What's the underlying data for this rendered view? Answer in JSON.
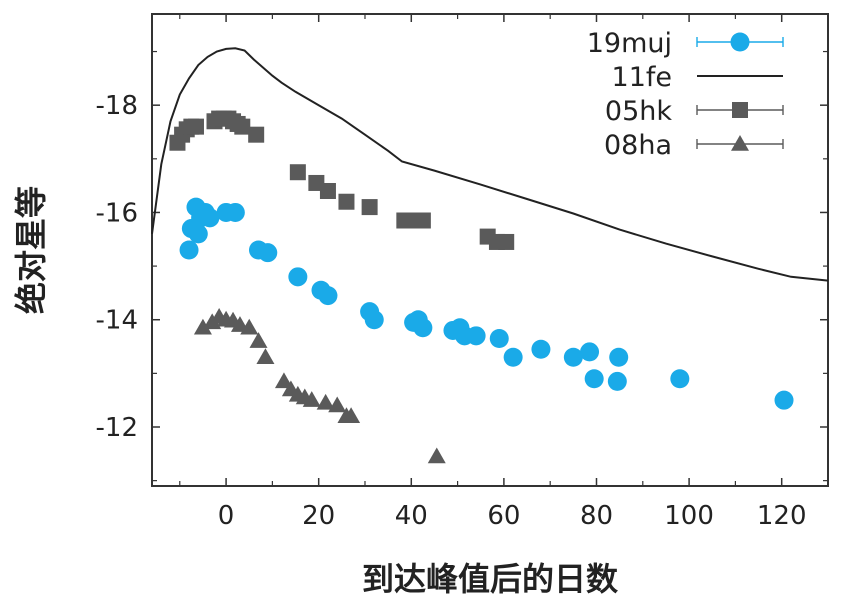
{
  "chart_data": {
    "type": "scatter",
    "xlabel": "到达峰值后的日数",
    "ylabel": "绝对星等",
    "xlim": [
      -16,
      130
    ],
    "ylim": [
      -10.9,
      -19.7
    ],
    "y_inverted": true,
    "xticks": [
      0,
      20,
      40,
      60,
      80,
      100,
      120
    ],
    "yticks": [
      -12,
      -14,
      -16,
      -18
    ],
    "x_tick_labels": [
      "0",
      "20",
      "40",
      "60",
      "80",
      "100",
      "120"
    ],
    "y_tick_labels": [
      "-12",
      "-14",
      "-16",
      "-18"
    ],
    "grid": false,
    "legend_position": "top-right",
    "series": [
      {
        "name": "19muj",
        "marker": "circle",
        "color": "#1aaae8",
        "points": [
          [
            -8,
            -15.3
          ],
          [
            -7.5,
            -15.7
          ],
          [
            -6.5,
            -16.1
          ],
          [
            -6,
            -15.6
          ],
          [
            -5.5,
            -15.9
          ],
          [
            -4.5,
            -16.0
          ],
          [
            -3.5,
            -15.9
          ],
          [
            0,
            -16.0
          ],
          [
            2,
            -16.0
          ],
          [
            7,
            -15.3
          ],
          [
            9,
            -15.25
          ],
          [
            15.5,
            -14.8
          ],
          [
            20.5,
            -14.55
          ],
          [
            22,
            -14.45
          ],
          [
            31,
            -14.15
          ],
          [
            32,
            -14.0
          ],
          [
            40.5,
            -13.95
          ],
          [
            41.5,
            -14.0
          ],
          [
            42.5,
            -13.85
          ],
          [
            49,
            -13.8
          ],
          [
            50.5,
            -13.85
          ],
          [
            51.5,
            -13.7
          ],
          [
            54,
            -13.7
          ],
          [
            59,
            -13.65
          ],
          [
            62,
            -13.3
          ],
          [
            68,
            -13.45
          ],
          [
            75,
            -13.3
          ],
          [
            78.5,
            -13.4
          ],
          [
            79.5,
            -12.9
          ],
          [
            84.5,
            -12.85
          ],
          [
            84.8,
            -13.3
          ],
          [
            98,
            -12.9
          ],
          [
            120.5,
            -12.5
          ]
        ]
      },
      {
        "name": "11fe",
        "marker": "line",
        "color": "#222222",
        "points": [
          [
            -16,
            -15.6
          ],
          [
            -14,
            -16.9
          ],
          [
            -12,
            -17.7
          ],
          [
            -10,
            -18.2
          ],
          [
            -8,
            -18.5
          ],
          [
            -6,
            -18.75
          ],
          [
            -4,
            -18.9
          ],
          [
            -2,
            -19.0
          ],
          [
            0,
            -19.05
          ],
          [
            2,
            -19.06
          ],
          [
            4,
            -19.02
          ],
          [
            6,
            -18.85
          ],
          [
            8,
            -18.7
          ],
          [
            10,
            -18.55
          ],
          [
            12,
            -18.42
          ],
          [
            15,
            -18.25
          ],
          [
            20,
            -18.0
          ],
          [
            25,
            -17.75
          ],
          [
            30,
            -17.45
          ],
          [
            35,
            -17.15
          ],
          [
            38,
            -16.95
          ],
          [
            45,
            -16.78
          ],
          [
            55,
            -16.52
          ],
          [
            65,
            -16.25
          ],
          [
            75,
            -15.98
          ],
          [
            85,
            -15.68
          ],
          [
            95,
            -15.42
          ],
          [
            105,
            -15.18
          ],
          [
            115,
            -14.95
          ],
          [
            122,
            -14.8
          ],
          [
            130,
            -14.73
          ]
        ]
      },
      {
        "name": "05hk",
        "marker": "square",
        "color": "#5a5a5a",
        "points": [
          [
            -10.5,
            -17.3
          ],
          [
            -9.5,
            -17.45
          ],
          [
            -8.5,
            -17.55
          ],
          [
            -7.5,
            -17.6
          ],
          [
            -6.5,
            -17.6
          ],
          [
            -2.5,
            -17.7
          ],
          [
            -1.5,
            -17.75
          ],
          [
            -0.5,
            -17.75
          ],
          [
            0.5,
            -17.75
          ],
          [
            1.5,
            -17.7
          ],
          [
            2.5,
            -17.65
          ],
          [
            3.5,
            -17.6
          ],
          [
            6.5,
            -17.45
          ],
          [
            15.5,
            -16.75
          ],
          [
            19.5,
            -16.55
          ],
          [
            22,
            -16.4
          ],
          [
            26,
            -16.2
          ],
          [
            31,
            -16.1
          ],
          [
            38.5,
            -15.85
          ],
          [
            40,
            -15.85
          ],
          [
            42.5,
            -15.85
          ],
          [
            56.5,
            -15.55
          ],
          [
            58.5,
            -15.45
          ],
          [
            60.5,
            -15.45
          ]
        ]
      },
      {
        "name": "08ha",
        "marker": "triangle",
        "color": "#5a5a5a",
        "points": [
          [
            -5,
            -13.85
          ],
          [
            -3,
            -13.95
          ],
          [
            -1.5,
            -14.05
          ],
          [
            0,
            -14.0
          ],
          [
            1.5,
            -13.98
          ],
          [
            3,
            -13.9
          ],
          [
            5,
            -13.85
          ],
          [
            7,
            -13.6
          ],
          [
            8.5,
            -13.3
          ],
          [
            12.5,
            -12.85
          ],
          [
            14,
            -12.7
          ],
          [
            15.5,
            -12.6
          ],
          [
            17,
            -12.55
          ],
          [
            18.5,
            -12.5
          ],
          [
            21.5,
            -12.45
          ],
          [
            24,
            -12.4
          ],
          [
            26,
            -12.2
          ],
          [
            27,
            -12.2
          ],
          [
            45.5,
            -11.45
          ]
        ]
      }
    ]
  }
}
